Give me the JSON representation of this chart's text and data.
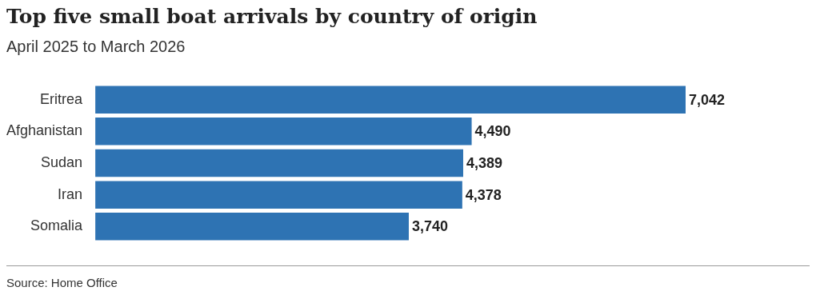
{
  "chart_data": {
    "type": "bar",
    "title": "Top five small boat arrivals by country of origin",
    "subtitle": "April 2025 to March 2026",
    "orientation": "horizontal",
    "categories": [
      "Eritrea",
      "Afghanistan",
      "Sudan",
      "Iran",
      "Somalia"
    ],
    "values": [
      7042,
      4490,
      4389,
      4378,
      3740
    ],
    "color": "#2e73b3",
    "value_labels": [
      "7,042",
      "4,490",
      "4,389",
      "4,378",
      "3,740"
    ],
    "annotations": [
      "Source: Home Office"
    ]
  }
}
